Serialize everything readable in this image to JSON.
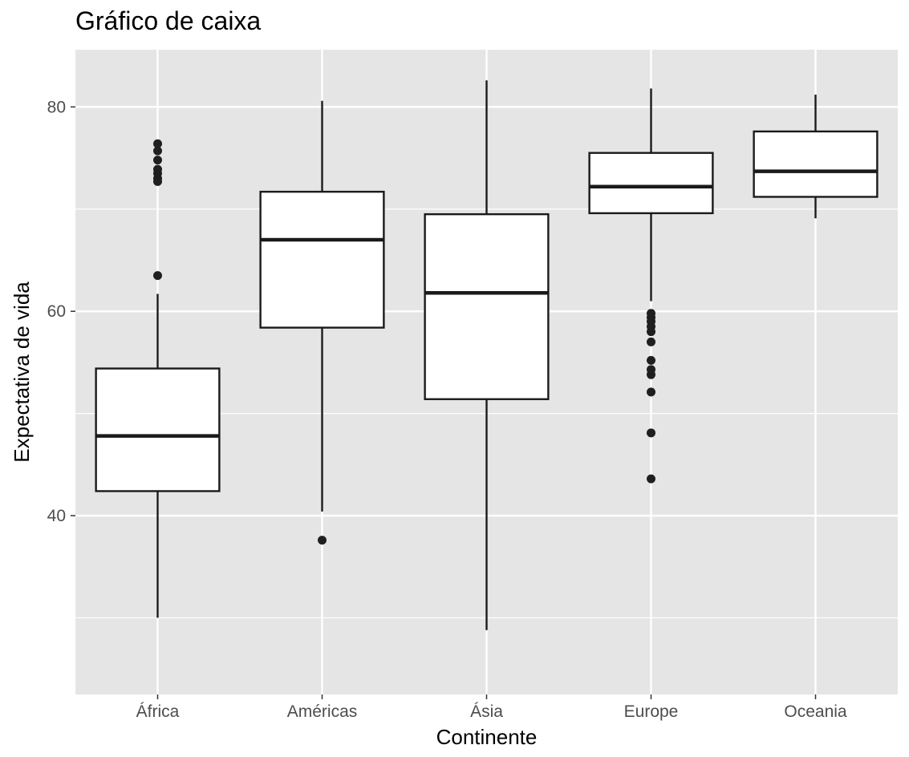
{
  "chart_data": {
    "type": "boxplot",
    "title": "Gráfico de caixa",
    "xlabel": "Continente",
    "ylabel": "Expectativa de vida",
    "ylim": [
      22.5,
      85.6
    ],
    "yticks": [
      40,
      60,
      80
    ],
    "grid": true,
    "categories": [
      "África",
      "Américas",
      "Ásia",
      "Europe",
      "Oceania"
    ],
    "boxes": [
      {
        "category": "África",
        "whisker_low": 30.0,
        "q1": 42.4,
        "median": 47.8,
        "q3": 54.4,
        "whisker_high": 61.7,
        "outliers": [
          63.5,
          72.7,
          73.0,
          73.5,
          73.9,
          74.8,
          75.7,
          76.4
        ]
      },
      {
        "category": "Américas",
        "whisker_low": 40.4,
        "q1": 58.4,
        "median": 67.0,
        "q3": 71.7,
        "whisker_high": 80.6,
        "outliers": [
          37.6
        ]
      },
      {
        "category": "Ásia",
        "whisker_low": 28.8,
        "q1": 51.4,
        "median": 61.8,
        "q3": 69.5,
        "whisker_high": 82.6,
        "outliers": []
      },
      {
        "category": "Europe",
        "whisker_low": 61.0,
        "q1": 69.6,
        "median": 72.2,
        "q3": 75.5,
        "whisker_high": 81.8,
        "outliers": [
          43.6,
          48.1,
          52.1,
          53.8,
          54.3,
          55.2,
          57.0,
          58.0,
          58.5,
          59.0,
          59.4,
          59.8
        ]
      },
      {
        "category": "Oceania",
        "whisker_low": 69.1,
        "q1": 71.2,
        "median": 73.7,
        "q3": 77.6,
        "whisker_high": 81.2,
        "outliers": []
      }
    ],
    "colors": {
      "panel": "#e5e5e5",
      "grid": "#ffffff",
      "box_fill": "#ffffff",
      "line": "#1a1a1a",
      "tick_text": "#4d4d4d"
    }
  }
}
